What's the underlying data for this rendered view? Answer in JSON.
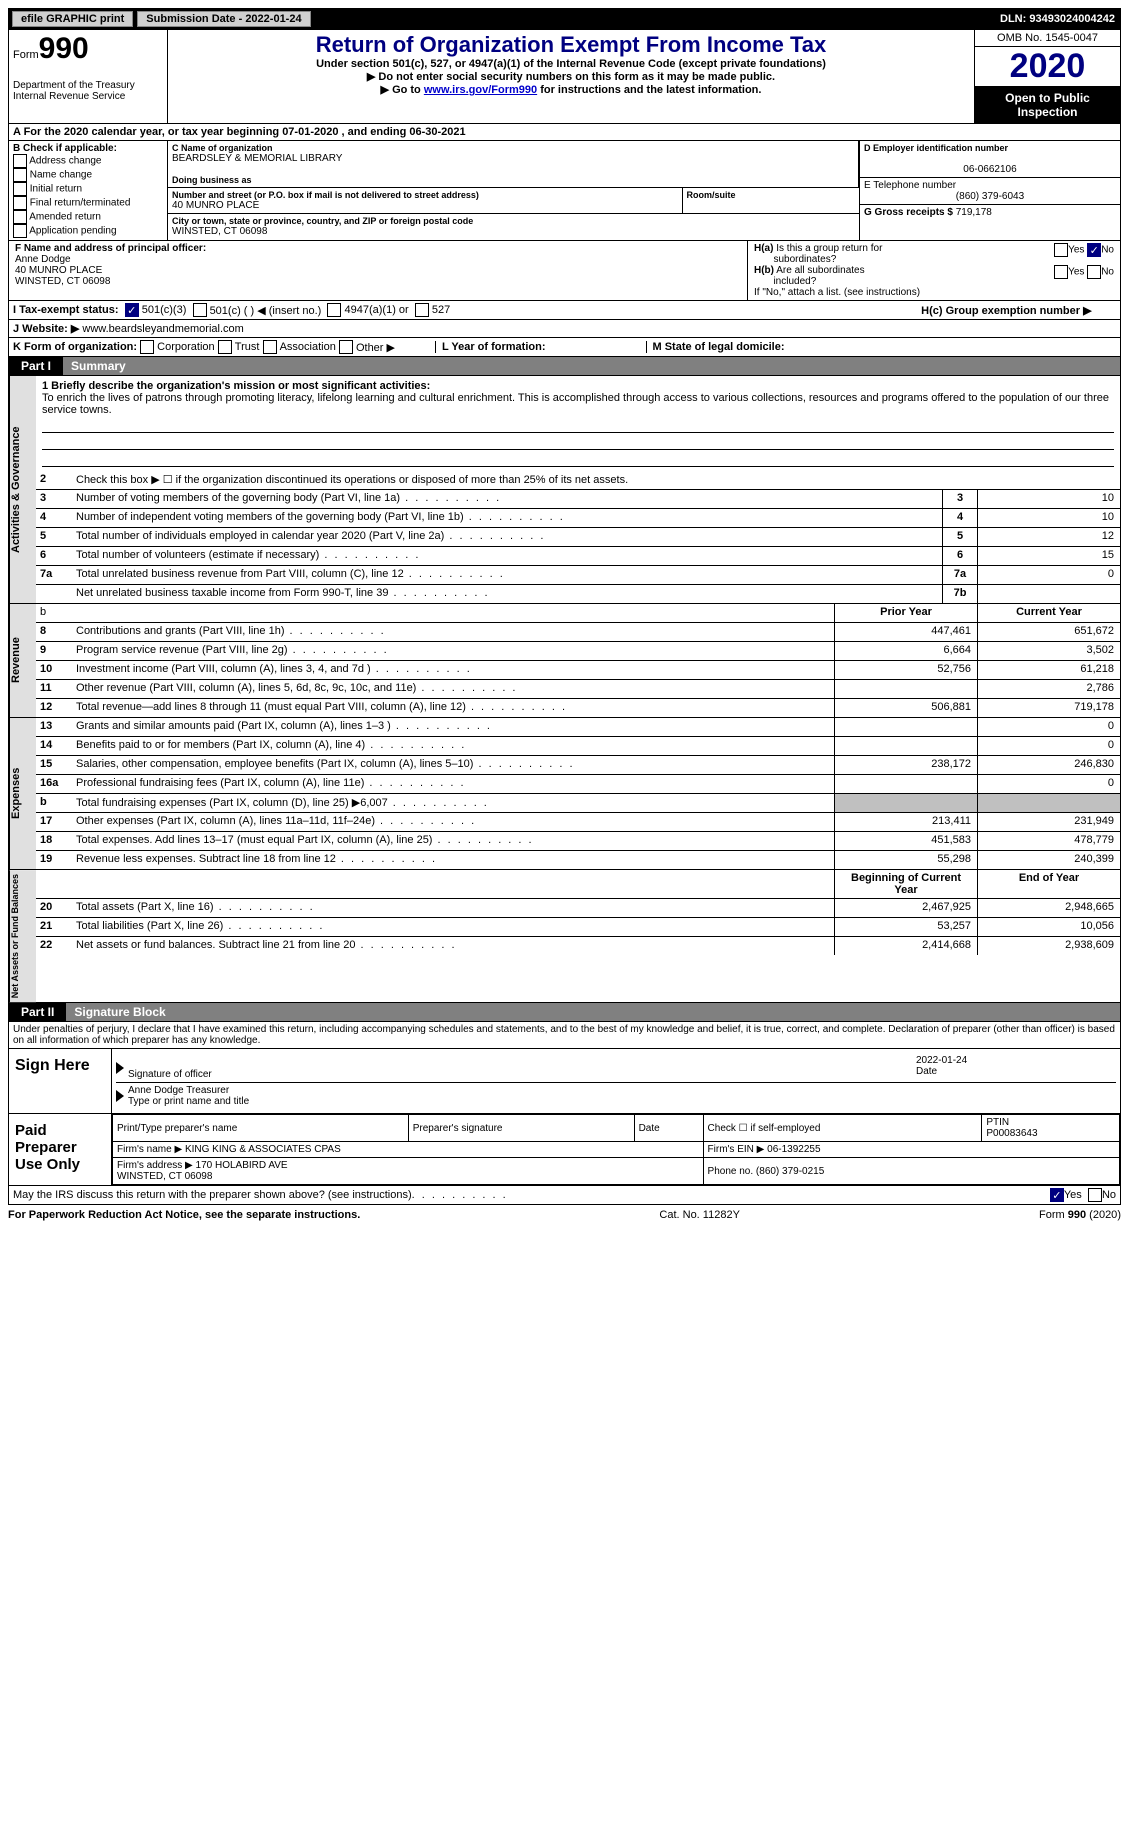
{
  "top_bar": {
    "efile": "efile GRAPHIC print",
    "submission_label": "Submission Date - 2022-01-24",
    "dln": "DLN: 93493024004242"
  },
  "header": {
    "form_prefix": "Form",
    "form_number": "990",
    "dept": "Department of the Treasury\nInternal Revenue Service",
    "title": "Return of Organization Exempt From Income Tax",
    "subtitle": "Under section 501(c), 527, or 4947(a)(1) of the Internal Revenue Code (except private foundations)",
    "note1": "▶ Do not enter social security numbers on this form as it may be made public.",
    "note2_pre": "▶ Go to ",
    "note2_link": "www.irs.gov/Form990",
    "note2_post": " for instructions and the latest information.",
    "omb": "OMB No. 1545-0047",
    "year": "2020",
    "inspection": "Open to Public Inspection"
  },
  "line_a": "A For the 2020 calendar year, or tax year beginning 07-01-2020   , and ending 06-30-2021",
  "box_b": {
    "title": "B Check if applicable:",
    "items": [
      "Address change",
      "Name change",
      "Initial return",
      "Final return/terminated",
      "Amended return",
      "Application pending"
    ]
  },
  "box_c": {
    "label": "C Name of organization",
    "name": "BEARDSLEY & MEMORIAL LIBRARY",
    "dba_label": "Doing business as",
    "dba": "",
    "addr_label": "Number and street (or P.O. box if mail is not delivered to street address)",
    "room_label": "Room/suite",
    "addr": "40 MUNRO PLACE",
    "city_label": "City or town, state or province, country, and ZIP or foreign postal code",
    "city": "WINSTED, CT  06098"
  },
  "box_d": {
    "label": "D Employer identification number",
    "val": "06-0662106"
  },
  "box_e": {
    "label": "E Telephone number",
    "val": "(860) 379-6043"
  },
  "box_g": {
    "label": "G Gross receipts $",
    "val": "719,178"
  },
  "box_f": {
    "label": "F Name and address of principal officer:",
    "name": "Anne Dodge",
    "addr": "40 MUNRO PLACE\nWINSTED, CT  06098"
  },
  "box_h": {
    "a_label": "H(a) Is this a group return for subordinates?",
    "b_label": "H(b) Are all subordinates included?",
    "b_note": "If \"No,\" attach a list. (see instructions)",
    "c_label": "H(c) Group exemption number ▶",
    "yes": "Yes",
    "no": "No"
  },
  "line_i": {
    "label": "I   Tax-exempt status:",
    "opts": [
      "501(c)(3)",
      "501(c) (  ) ◀ (insert no.)",
      "4947(a)(1) or",
      "527"
    ]
  },
  "line_j": {
    "label": "J   Website: ▶",
    "val": "www.beardsleyandmemorial.com"
  },
  "line_k": {
    "label": "K Form of organization:",
    "opts": [
      "Corporation",
      "Trust",
      "Association",
      "Other ▶"
    ]
  },
  "line_l": "L Year of formation:",
  "line_m": "M State of legal domicile:",
  "part1": {
    "tab": "Part I",
    "title": "Summary"
  },
  "mission": {
    "label": "1  Briefly describe the organization's mission or most significant activities:",
    "text": "To enrich the lives of patrons through promoting literacy, lifelong learning and cultural enrichment. This is accomplished through access to various collections, resources and programs offered to the population of our three service towns."
  },
  "governance": {
    "label": "Activities & Governance",
    "line2": "Check this box ▶ ☐  if the organization discontinued its operations or disposed of more than 25% of its net assets.",
    "rows": [
      {
        "n": "3",
        "desc": "Number of voting members of the governing body (Part VI, line 1a)",
        "box": "3",
        "val": "10"
      },
      {
        "n": "4",
        "desc": "Number of independent voting members of the governing body (Part VI, line 1b)",
        "box": "4",
        "val": "10"
      },
      {
        "n": "5",
        "desc": "Total number of individuals employed in calendar year 2020 (Part V, line 2a)",
        "box": "5",
        "val": "12"
      },
      {
        "n": "6",
        "desc": "Total number of volunteers (estimate if necessary)",
        "box": "6",
        "val": "15"
      },
      {
        "n": "7a",
        "desc": "Total unrelated business revenue from Part VIII, column (C), line 12",
        "box": "7a",
        "val": "0"
      },
      {
        "n": "",
        "desc": "Net unrelated business taxable income from Form 990-T, line 39",
        "box": "7b",
        "val": ""
      }
    ]
  },
  "col_headers": {
    "prior": "Prior Year",
    "current": "Current Year"
  },
  "revenue": {
    "label": "Revenue",
    "rows": [
      {
        "n": "8",
        "desc": "Contributions and grants (Part VIII, line 1h)",
        "prior": "447,461",
        "current": "651,672"
      },
      {
        "n": "9",
        "desc": "Program service revenue (Part VIII, line 2g)",
        "prior": "6,664",
        "current": "3,502"
      },
      {
        "n": "10",
        "desc": "Investment income (Part VIII, column (A), lines 3, 4, and 7d )",
        "prior": "52,756",
        "current": "61,218"
      },
      {
        "n": "11",
        "desc": "Other revenue (Part VIII, column (A), lines 5, 6d, 8c, 9c, 10c, and 11e)",
        "prior": "",
        "current": "2,786"
      },
      {
        "n": "12",
        "desc": "Total revenue—add lines 8 through 11 (must equal Part VIII, column (A), line 12)",
        "prior": "506,881",
        "current": "719,178"
      }
    ]
  },
  "expenses": {
    "label": "Expenses",
    "rows": [
      {
        "n": "13",
        "desc": "Grants and similar amounts paid (Part IX, column (A), lines 1–3 )",
        "prior": "",
        "current": "0"
      },
      {
        "n": "14",
        "desc": "Benefits paid to or for members (Part IX, column (A), line 4)",
        "prior": "",
        "current": "0"
      },
      {
        "n": "15",
        "desc": "Salaries, other compensation, employee benefits (Part IX, column (A), lines 5–10)",
        "prior": "238,172",
        "current": "246,830"
      },
      {
        "n": "16a",
        "desc": "Professional fundraising fees (Part IX, column (A), line 11e)",
        "prior": "",
        "current": "0"
      },
      {
        "n": "b",
        "desc": "Total fundraising expenses (Part IX, column (D), line 25) ▶6,007",
        "prior": "__shade__",
        "current": "__shade__"
      },
      {
        "n": "17",
        "desc": "Other expenses (Part IX, column (A), lines 11a–11d, 11f–24e)",
        "prior": "213,411",
        "current": "231,949"
      },
      {
        "n": "18",
        "desc": "Total expenses. Add lines 13–17 (must equal Part IX, column (A), line 25)",
        "prior": "451,583",
        "current": "478,779"
      },
      {
        "n": "19",
        "desc": "Revenue less expenses. Subtract line 18 from line 12",
        "prior": "55,298",
        "current": "240,399"
      }
    ]
  },
  "netassets": {
    "label": "Net Assets or Fund Balances",
    "hdr": {
      "prior": "Beginning of Current Year",
      "current": "End of Year"
    },
    "rows": [
      {
        "n": "20",
        "desc": "Total assets (Part X, line 16)",
        "prior": "2,467,925",
        "current": "2,948,665"
      },
      {
        "n": "21",
        "desc": "Total liabilities (Part X, line 26)",
        "prior": "53,257",
        "current": "10,056"
      },
      {
        "n": "22",
        "desc": "Net assets or fund balances. Subtract line 21 from line 20",
        "prior": "2,414,668",
        "current": "2,938,609"
      }
    ]
  },
  "part2": {
    "tab": "Part II",
    "title": "Signature Block"
  },
  "sig_decl": "Under penalties of perjury, I declare that I have examined this return, including accompanying schedules and statements, and to the best of my knowledge and belief, it is true, correct, and complete. Declaration of preparer (other than officer) is based on all information of which preparer has any knowledge.",
  "sign_here": {
    "label": "Sign Here",
    "sig_label": "Signature of officer",
    "date_label": "Date",
    "date": "2022-01-24",
    "name_label": "Type or print name and title",
    "name": "Anne Dodge  Treasurer"
  },
  "paid_prep": {
    "label": "Paid Preparer Use Only",
    "print_label": "Print/Type preparer's name",
    "sig_label": "Preparer's signature",
    "date_label": "Date",
    "check_label": "Check ☐ if self-employed",
    "ptin_label": "PTIN",
    "ptin": "P00083643",
    "firm_name_label": "Firm's name   ▶",
    "firm_name": "KING KING & ASSOCIATES CPAS",
    "firm_ein_label": "Firm's EIN ▶",
    "firm_ein": "06-1392255",
    "firm_addr_label": "Firm's address ▶",
    "firm_addr": "170 HOLABIRD AVE\nWINSTED, CT  06098",
    "phone_label": "Phone no.",
    "phone": "(860) 379-0215"
  },
  "discuss": {
    "label": "May the IRS discuss this return with the preparer shown above? (see instructions)",
    "yes": "Yes",
    "no": "No"
  },
  "footer": {
    "left": "For Paperwork Reduction Act Notice, see the separate instructions.",
    "mid": "Cat. No. 11282Y",
    "right": "Form 990 (2020)"
  },
  "colors": {
    "darkblue": "#000080",
    "link": "#0000cc",
    "grey": "#808080",
    "shade": "#c0c0c0"
  }
}
